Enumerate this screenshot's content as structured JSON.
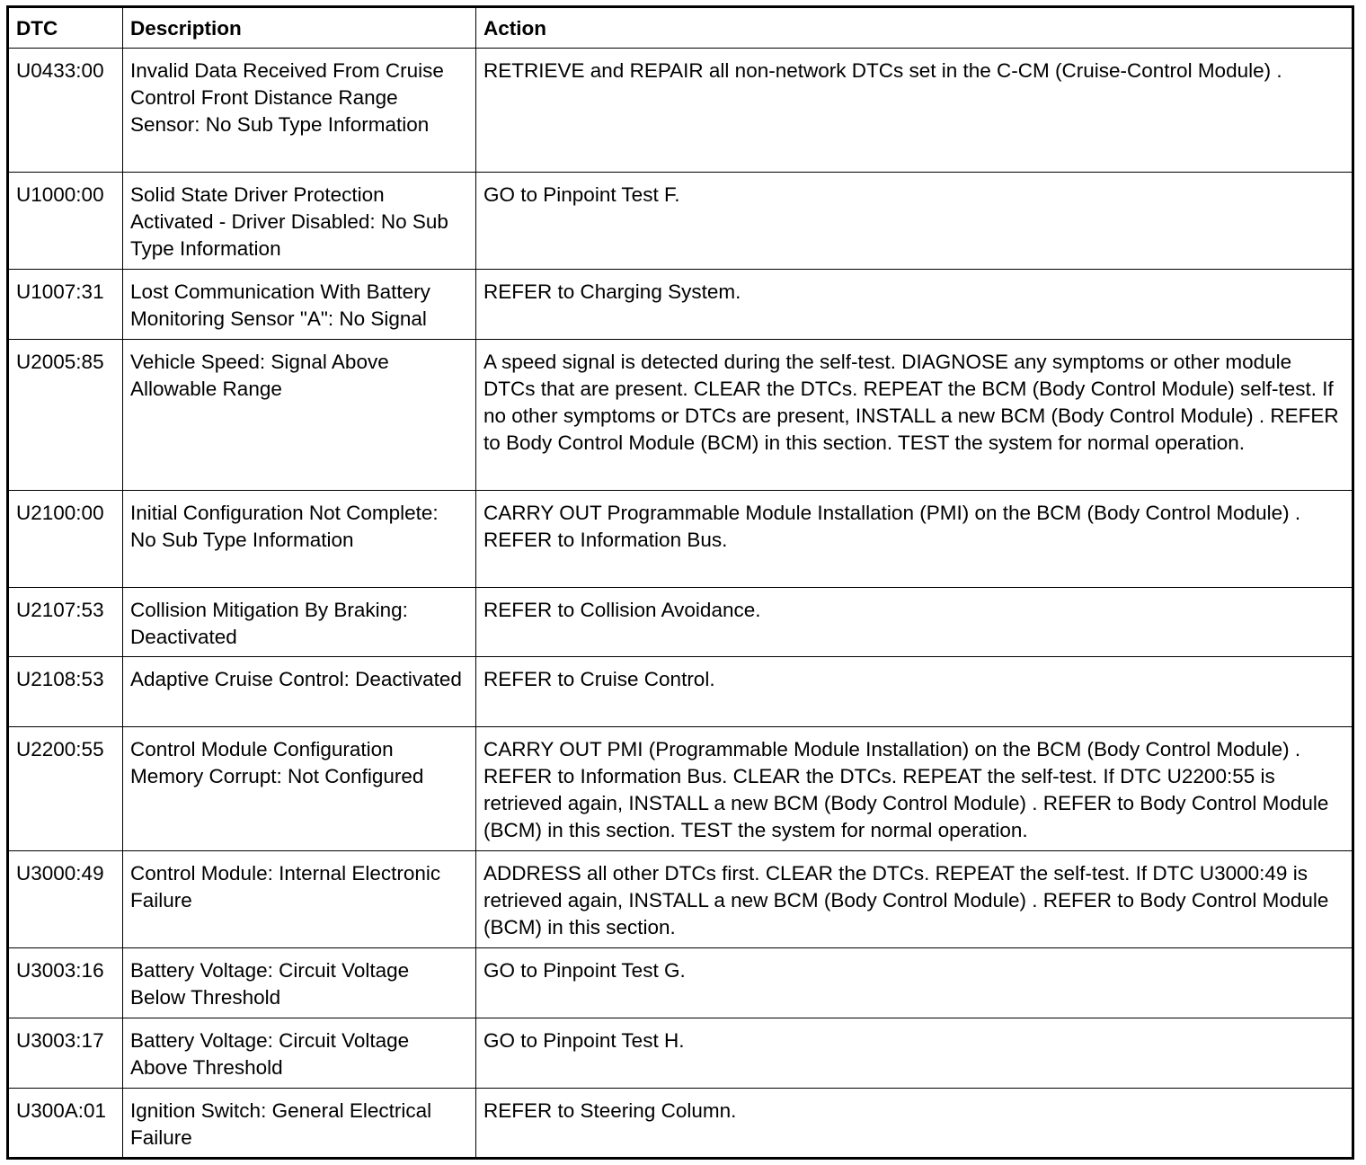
{
  "headers": [
    "DTC",
    "Description",
    "Action"
  ],
  "rows": [
    {
      "dtc": "U0433:00",
      "description": "Invalid Data Received From Cruise Control Front Distance Range Sensor: No Sub Type Information",
      "action": "RETRIEVE and REPAIR all non-network DTCs set in the C-CM (Cruise-Control Module) ."
    },
    {
      "dtc": "U1000:00",
      "description": "Solid State Driver Protection Activated - Driver Disabled: No Sub Type Information",
      "action": "GO to Pinpoint Test F."
    },
    {
      "dtc": "U1007:31",
      "description": "Lost Communication With Battery Monitoring Sensor \"A\": No Signal",
      "action": "REFER to Charging System."
    },
    {
      "dtc": "U2005:85",
      "description": "Vehicle Speed: Signal Above Allowable Range",
      "action": "A speed signal is detected during the self-test. DIAGNOSE any symptoms or other module DTCs that are present. CLEAR the DTCs. REPEAT the BCM (Body Control Module) self-test. If no other symptoms or DTCs are present, INSTALL a new BCM (Body Control Module) . REFER to Body Control Module (BCM) in this section. TEST the system for normal operation."
    },
    {
      "dtc": "U2100:00",
      "description": "Initial Configuration Not Complete: No Sub Type Information",
      "action": "CARRY OUT Programmable Module Installation (PMI) on the BCM (Body Control Module) . REFER to Information Bus."
    },
    {
      "dtc": "U2107:53",
      "description": "Collision Mitigation By Braking: Deactivated",
      "action": "REFER to Collision Avoidance."
    },
    {
      "dtc": "U2108:53",
      "description": "Adaptive Cruise Control: Deactivated",
      "action": "REFER to Cruise Control."
    },
    {
      "dtc": "U2200:55",
      "description": "Control Module Configuration Memory Corrupt: Not Configured",
      "action": "CARRY OUT PMI (Programmable Module Installation) on the BCM (Body Control Module) . REFER to Information Bus. CLEAR the DTCs. REPEAT the self-test. If DTC U2200:55 is retrieved again, INSTALL a new BCM (Body Control Module) . REFER to Body Control Module (BCM) in this section. TEST the system for normal operation."
    },
    {
      "dtc": "U3000:49",
      "description": "Control Module: Internal Electronic Failure",
      "action": "ADDRESS all other DTCs first. CLEAR the DTCs. REPEAT the self-test. If DTC U3000:49 is retrieved again, INSTALL a new BCM (Body Control Module) . REFER to Body Control Module (BCM) in this section."
    },
    {
      "dtc": "U3003:16",
      "description": "Battery Voltage: Circuit Voltage Below Threshold",
      "action": "GO to Pinpoint Test G."
    },
    {
      "dtc": "U3003:17",
      "description": "Battery Voltage: Circuit Voltage Above Threshold",
      "action": "GO to Pinpoint Test H."
    },
    {
      "dtc": "U300A:01",
      "description": "Ignition Switch: General Electrical Failure",
      "action": "REFER to Steering Column."
    }
  ]
}
